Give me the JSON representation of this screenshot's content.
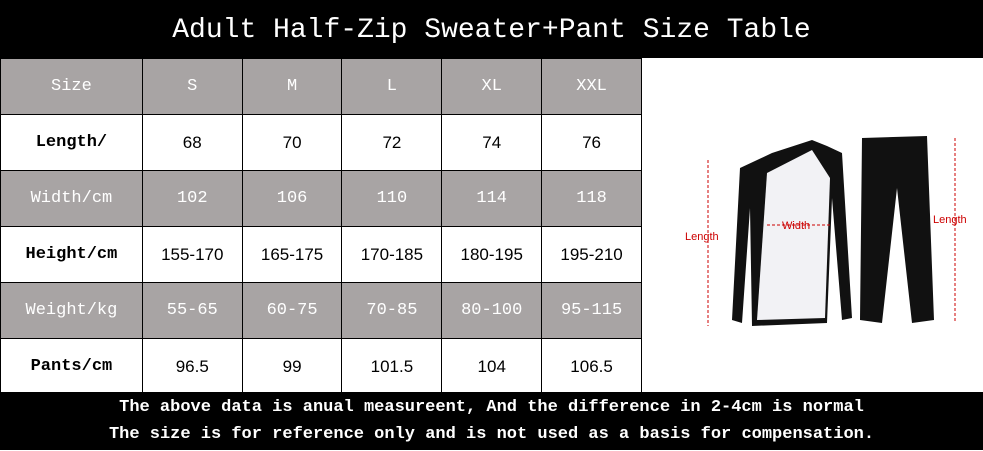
{
  "header": {
    "title": "Adult Half-Zip Sweater+Pant Size Table"
  },
  "table": {
    "columns": [
      "Size",
      "S",
      "M",
      "L",
      "XL",
      "XXL"
    ],
    "rows": [
      [
        "Length/",
        "68",
        "70",
        "72",
        "74",
        "76"
      ],
      [
        "Width/cm",
        "102",
        "106",
        "110",
        "114",
        "118"
      ],
      [
        "Height/cm",
        "155-170",
        "165-175",
        "170-185",
        "180-195",
        "195-210"
      ],
      [
        "Weight/kg",
        "55-65",
        "60-75",
        "70-85",
        "80-100",
        "95-115"
      ],
      [
        "Pants/cm",
        "96.5",
        "99",
        "101.5",
        "104",
        "106.5"
      ]
    ]
  },
  "illustration": {
    "left_label": "Length",
    "width_label": "Width",
    "right_label": "Length"
  },
  "footer": {
    "lines": [
      "The above data is anual measureent, And the difference in 2-4cm is normal",
      "The size is for reference only and is not used as a basis for compensation."
    ]
  }
}
